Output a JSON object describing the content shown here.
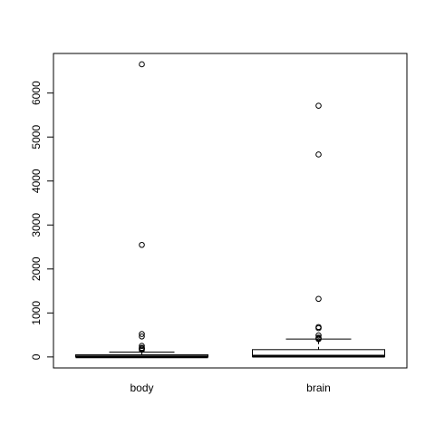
{
  "chart_data": {
    "type": "boxplot",
    "title": "",
    "xlabel": "",
    "ylabel": "",
    "ylim": [
      -250,
      6900
    ],
    "yticks": [
      0,
      1000,
      2000,
      3000,
      4000,
      5000,
      6000
    ],
    "yticklabels": [
      "0",
      "1000",
      "2000",
      "3000",
      "4000",
      "5000",
      "6000"
    ],
    "categories": [
      "body",
      "brain"
    ],
    "boxes": [
      {
        "name": "body",
        "whisker_low": 0,
        "q1": 1,
        "median": 3,
        "q3": 48,
        "whisker_high": 110,
        "outliers": [
          6654,
          2547,
          521,
          465,
          250,
          207,
          192,
          187,
          160
        ]
      },
      {
        "name": "brain",
        "whisker_low": 0,
        "q1": 4,
        "median": 17,
        "q3": 166,
        "whisker_high": 406,
        "outliers": [
          5712,
          4603,
          1320,
          680,
          655,
          490,
          440,
          420,
          406
        ]
      }
    ]
  }
}
